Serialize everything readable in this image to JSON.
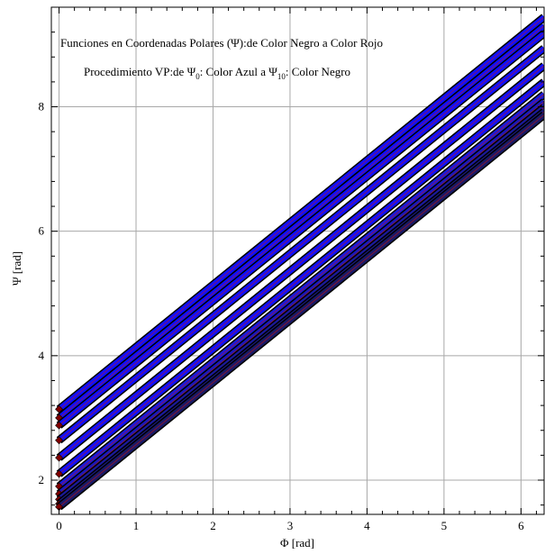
{
  "chart_data": {
    "type": "line",
    "xlabel": "Φ [rad]",
    "ylabel": "Ψ [rad]",
    "xlim": [
      -0.1,
      6.3
    ],
    "ylim": [
      1.45,
      9.6
    ],
    "x_ticks": [
      0,
      1,
      2,
      3,
      4,
      5,
      6
    ],
    "y_ticks": [
      2,
      4,
      6,
      8
    ],
    "grid": true,
    "annotations": {
      "line1": "Funciones en Coordenadas Polares (Ψ):de Color Negro a Color Rojo",
      "line2_prefix": "Procedimiento VP:de Ψ",
      "line2_sub0": "0",
      "line2_mid": ": Color Azul a Ψ",
      "line2_sub10": "10",
      "line2_suffix": ": Color Negro"
    },
    "series": [
      {
        "intercept": 3.14,
        "slope": 1.0,
        "color": "#1010ff"
      },
      {
        "intercept": 3.0,
        "slope": 1.0,
        "color": "#1010ff"
      },
      {
        "intercept": 2.88,
        "slope": 1.0,
        "color": "#1010ff"
      },
      {
        "intercept": 2.64,
        "slope": 1.0,
        "color": "#1010ff"
      },
      {
        "intercept": 2.36,
        "slope": 1.0,
        "color": "#1010ff"
      },
      {
        "intercept": 2.1,
        "slope": 1.0,
        "color": "#1010ff"
      },
      {
        "intercept": 1.9,
        "slope": 1.0,
        "color": "#1a1ad8"
      },
      {
        "intercept": 1.78,
        "slope": 1.0,
        "color": "#1a1ab8"
      },
      {
        "intercept": 1.69,
        "slope": 1.0,
        "color": "#1a1a9a"
      },
      {
        "intercept": 1.62,
        "slope": 1.0,
        "color": "#1a1a80"
      },
      {
        "intercept": 1.57,
        "slope": 1.0,
        "color": "#1a1a66"
      }
    ]
  }
}
